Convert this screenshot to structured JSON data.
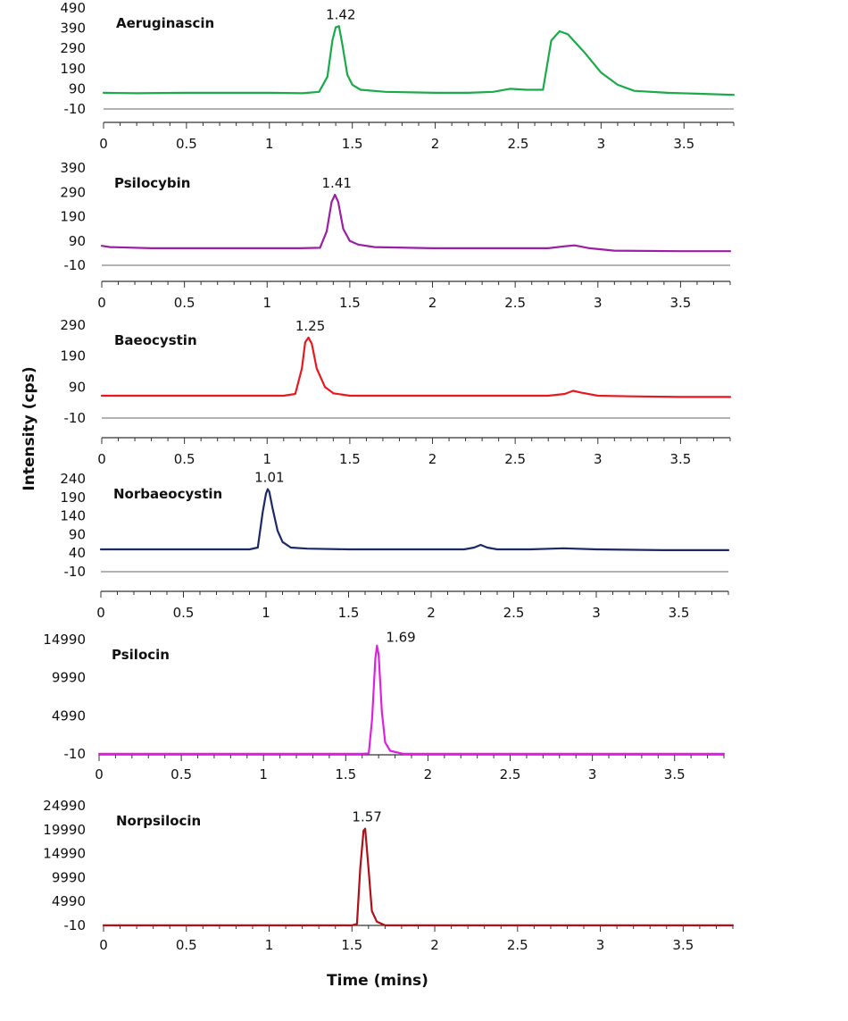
{
  "chart_data": {
    "type": "line",
    "ylabel": "Intensity (cps)",
    "xlabel": "Time (mins)",
    "xlim": [
      0,
      3.8
    ],
    "x_ticks": [
      "0",
      "0.5",
      "1",
      "1.5",
      "2",
      "2.5",
      "3",
      "3.5"
    ],
    "panels": [
      {
        "name": "Aeruginascin",
        "color": "#1aaa4a",
        "ylim": [
          -10,
          490
        ],
        "y_ticks": [
          "490",
          "390",
          "290",
          "190",
          "90",
          "-10"
        ],
        "peak_label": "1.42",
        "x": [
          0,
          0.2,
          0.5,
          1.0,
          1.2,
          1.3,
          1.35,
          1.38,
          1.4,
          1.42,
          1.44,
          1.47,
          1.5,
          1.55,
          1.7,
          2.0,
          2.2,
          2.35,
          2.45,
          2.55,
          2.65,
          2.7,
          2.75,
          2.8,
          2.9,
          3.0,
          3.1,
          3.2,
          3.4,
          3.6,
          3.8
        ],
        "values": [
          70,
          68,
          70,
          70,
          68,
          75,
          150,
          330,
          395,
          400,
          310,
          160,
          110,
          85,
          75,
          70,
          70,
          75,
          90,
          85,
          85,
          330,
          375,
          360,
          270,
          170,
          110,
          80,
          70,
          65,
          60
        ]
      },
      {
        "name": "Psilocybin",
        "color": "#9b1fa5",
        "ylim": [
          -10,
          390
        ],
        "y_ticks": [
          "390",
          "290",
          "190",
          "90",
          "-10"
        ],
        "peak_label": "1.41",
        "x": [
          0,
          0.05,
          0.3,
          0.8,
          1.2,
          1.32,
          1.36,
          1.39,
          1.41,
          1.43,
          1.46,
          1.5,
          1.55,
          1.65,
          2.0,
          2.5,
          2.7,
          2.8,
          2.86,
          2.95,
          3.1,
          3.5,
          3.8
        ],
        "values": [
          70,
          65,
          60,
          60,
          60,
          62,
          130,
          250,
          280,
          250,
          140,
          90,
          75,
          65,
          60,
          60,
          60,
          68,
          72,
          60,
          50,
          48,
          48
        ]
      },
      {
        "name": "Baeocystin",
        "color": "#e8181f",
        "ylim": [
          -10,
          290
        ],
        "y_ticks": [
          "290",
          "190",
          "90",
          "-10"
        ],
        "peak_label": "1.25",
        "x": [
          0,
          0.3,
          0.9,
          1.1,
          1.17,
          1.21,
          1.23,
          1.25,
          1.27,
          1.3,
          1.35,
          1.4,
          1.5,
          2.0,
          2.5,
          2.7,
          2.8,
          2.85,
          2.9,
          3.0,
          3.2,
          3.5,
          3.8
        ],
        "values": [
          62,
          62,
          62,
          62,
          68,
          150,
          235,
          250,
          230,
          150,
          90,
          70,
          62,
          62,
          62,
          62,
          68,
          78,
          72,
          62,
          60,
          58,
          58
        ]
      },
      {
        "name": "Norbaeocystin",
        "color": "#1a2a66",
        "ylim": [
          -10,
          240
        ],
        "y_ticks": [
          "240",
          "190",
          "140",
          "90",
          "40",
          "-10"
        ],
        "peak_label": "1.01",
        "x": [
          0,
          0.3,
          0.9,
          0.95,
          0.98,
          1.0,
          1.01,
          1.02,
          1.04,
          1.07,
          1.1,
          1.15,
          1.25,
          1.5,
          2.0,
          2.2,
          2.26,
          2.3,
          2.34,
          2.4,
          2.6,
          2.8,
          3.0,
          3.4,
          3.8
        ],
        "values": [
          50,
          50,
          50,
          55,
          150,
          200,
          212,
          205,
          160,
          100,
          70,
          55,
          52,
          50,
          50,
          50,
          55,
          62,
          55,
          50,
          50,
          53,
          50,
          48,
          48
        ]
      },
      {
        "name": "Psilocin",
        "color": "#e020e0",
        "ylim": [
          -10,
          14990
        ],
        "y_ticks": [
          "14990",
          "9990",
          "4990",
          "-10"
        ],
        "peak_label": "1.69",
        "x": [
          0,
          1.0,
          1.6,
          1.64,
          1.66,
          1.68,
          1.69,
          1.7,
          1.72,
          1.74,
          1.77,
          1.85,
          2.5,
          3.8
        ],
        "values": [
          0,
          0,
          0,
          50,
          4500,
          12500,
          14200,
          13000,
          5500,
          1500,
          400,
          0,
          0,
          0
        ]
      },
      {
        "name": "Norpsilocin",
        "color": "#b01018",
        "ylim": [
          -10,
          24990
        ],
        "y_ticks": [
          "24990",
          "19990",
          "14990",
          "9990",
          "4990",
          "-10"
        ],
        "peak_label": "1.57",
        "x": [
          0,
          1.0,
          1.5,
          1.53,
          1.55,
          1.57,
          1.58,
          1.6,
          1.62,
          1.65,
          1.7,
          2.5,
          3.8
        ],
        "values": [
          0,
          0,
          0,
          300,
          12000,
          19800,
          20200,
          12000,
          3000,
          800,
          0,
          0,
          0
        ]
      }
    ]
  }
}
